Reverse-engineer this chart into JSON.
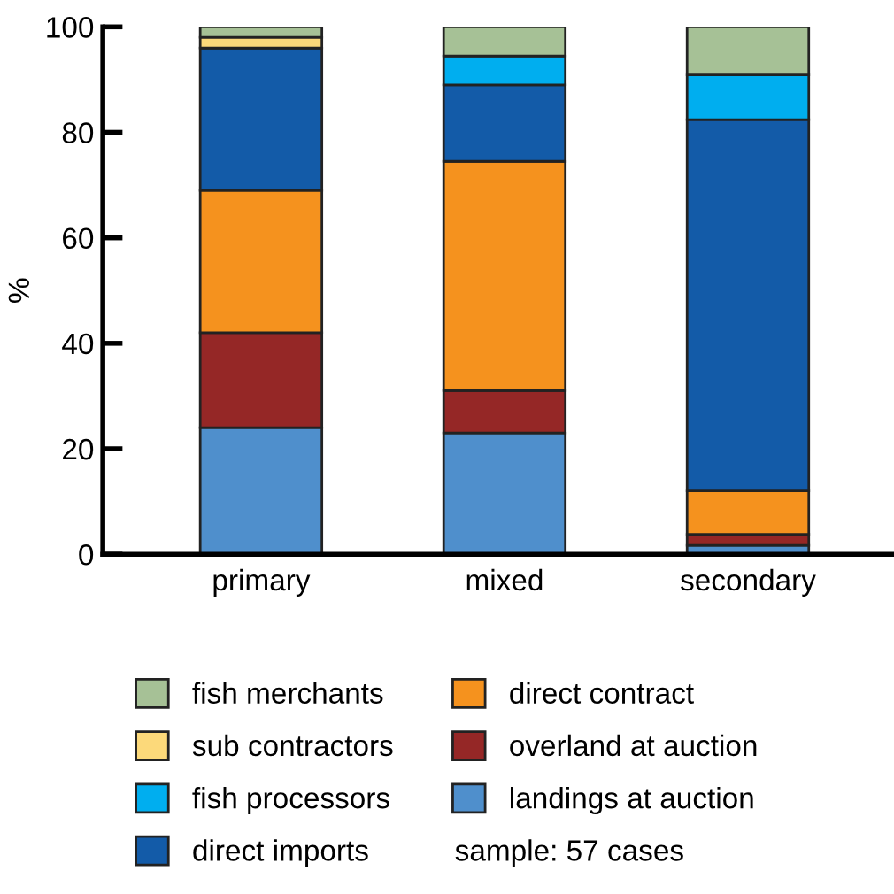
{
  "chart_data": {
    "type": "bar",
    "stacked": true,
    "ylabel": "%",
    "categories": [
      "primary",
      "mixed",
      "secondary"
    ],
    "series": [
      {
        "name": "landings at auction",
        "color": "#4f8fcc",
        "values": [
          24,
          23,
          1.7
        ]
      },
      {
        "name": "overland at auction",
        "color": "#952726",
        "values": [
          18,
          8,
          2.1
        ]
      },
      {
        "name": "direct contract",
        "color": "#f5921e",
        "values": [
          27,
          43.5,
          8.2
        ]
      },
      {
        "name": "direct imports",
        "color": "#135ba8",
        "values": [
          27,
          14.5,
          70.4
        ]
      },
      {
        "name": "fish processors",
        "color": "#00aeef",
        "values": [
          0,
          5.5,
          8.5
        ]
      },
      {
        "name": "sub contractors",
        "color": "#fcd97a",
        "values": [
          2,
          0,
          0
        ]
      },
      {
        "name": "fish merchants",
        "color": "#a6c196",
        "values": [
          2,
          5.5,
          9.1
        ]
      }
    ],
    "ylim": [
      0,
      100
    ],
    "yticks": [
      0,
      20,
      40,
      60,
      80,
      100
    ],
    "grid": false,
    "legend": "bottom",
    "annotations": [
      "sample: 57 cases"
    ]
  }
}
